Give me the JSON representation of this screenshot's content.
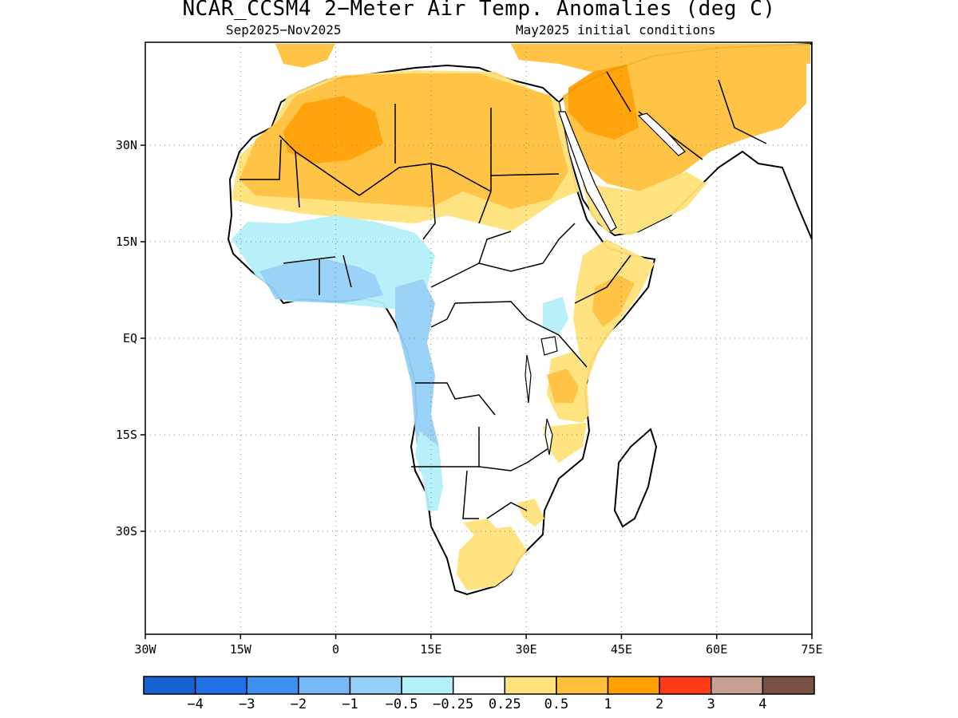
{
  "title": "NCAR_CCSM4 2−Meter Air Temp. Anomalies (deg C)",
  "subtitle_left": "Sep2025−Nov2025",
  "subtitle_right": "May2025 initial conditions",
  "map": {
    "lon_range": [
      -30,
      75
    ],
    "lat_range": [
      -46,
      46
    ],
    "lat_ticks": [
      {
        "value": 30,
        "label": "30N"
      },
      {
        "value": 15,
        "label": "15N"
      },
      {
        "value": 0,
        "label": "EQ"
      },
      {
        "value": -15,
        "label": "15S"
      },
      {
        "value": -30,
        "label": "30S"
      }
    ],
    "lon_ticks": [
      {
        "value": -30,
        "label": "30W"
      },
      {
        "value": -15,
        "label": "15W"
      },
      {
        "value": 0,
        "label": "0"
      },
      {
        "value": 15,
        "label": "15E"
      },
      {
        "value": 30,
        "label": "30E"
      },
      {
        "value": 45,
        "label": "45E"
      },
      {
        "value": 60,
        "label": "60E"
      },
      {
        "value": 75,
        "label": "75E"
      }
    ],
    "grid": "dotted"
  },
  "colorbar": {
    "colors": [
      "#1463d1",
      "#2070e8",
      "#3c90f0",
      "#78b8f6",
      "#96d0f8",
      "#b4f0f8",
      "#ffffff",
      "#ffe27a",
      "#ffc03c",
      "#ffa000",
      "#ff3c14",
      "#c8a090",
      "#7a5040"
    ],
    "labels": [
      "−4",
      "−3",
      "−2",
      "−1",
      "−0.5",
      "−0.25",
      "0.25",
      "0.5",
      "1",
      "2",
      "3",
      "4"
    ]
  }
}
